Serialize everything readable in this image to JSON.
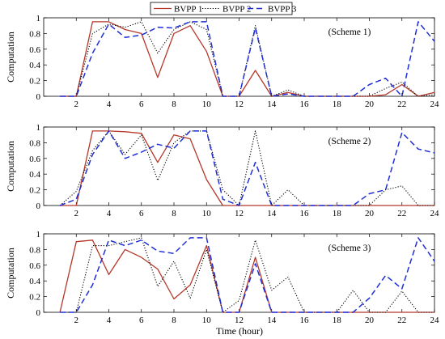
{
  "legend": [
    {
      "name": "BVPP 1",
      "color": "#b5372a",
      "dash": "solid"
    },
    {
      "name": "BVPP 2",
      "color": "#000000",
      "dash": "dotted"
    },
    {
      "name": "BVPP 3",
      "color": "#1f2fd6",
      "dash": "dashed"
    }
  ],
  "xlabel": "Time (hour)",
  "ylabel": "Computation",
  "chart_data": [
    {
      "type": "line",
      "annotation": "(Scheme 1)",
      "xlim": [
        0,
        24
      ],
      "ylim": [
        0,
        1
      ],
      "xticks": [
        2,
        4,
        6,
        8,
        10,
        12,
        14,
        16,
        18,
        20,
        22,
        24
      ],
      "yticks": [
        0,
        0.2,
        0.4,
        0.6,
        0.8,
        1
      ],
      "x": [
        1,
        2,
        3,
        4,
        5,
        6,
        7,
        8,
        9,
        10,
        11,
        12,
        13,
        14,
        15,
        16,
        17,
        18,
        19,
        20,
        21,
        22,
        23,
        24
      ],
      "series": [
        {
          "name": "BVPP 1",
          "values": [
            0,
            0,
            0.95,
            0.95,
            0.85,
            0.8,
            0.24,
            0.8,
            0.9,
            0.57,
            0,
            0,
            0.33,
            0,
            0.05,
            0,
            0,
            0,
            0,
            0,
            0.02,
            0.15,
            0,
            0.05
          ]
        },
        {
          "name": "BVPP 2",
          "values": [
            0,
            0,
            0.8,
            0.92,
            0.88,
            0.95,
            0.55,
            0.85,
            0.95,
            0.85,
            0,
            0,
            0.9,
            0,
            0.08,
            0,
            0,
            0,
            0,
            0,
            0.1,
            0.18,
            0,
            0.02
          ]
        },
        {
          "name": "BVPP 3",
          "values": [
            0,
            0,
            0.55,
            0.92,
            0.75,
            0.78,
            0.88,
            0.87,
            0.95,
            0.95,
            0,
            0,
            0.87,
            0,
            0.03,
            0,
            0,
            0,
            0,
            0.15,
            0.23,
            0,
            0.95,
            0.7
          ]
        }
      ]
    },
    {
      "type": "line",
      "annotation": "(Scheme 2)",
      "xlim": [
        0,
        24
      ],
      "ylim": [
        0,
        1
      ],
      "xticks": [
        2,
        4,
        6,
        8,
        10,
        12,
        14,
        16,
        18,
        20,
        22,
        24
      ],
      "yticks": [
        0,
        0.2,
        0.4,
        0.6,
        0.8,
        1
      ],
      "x": [
        1,
        2,
        3,
        4,
        5,
        6,
        7,
        8,
        9,
        10,
        11,
        12,
        13,
        14,
        15,
        16,
        17,
        18,
        19,
        20,
        21,
        22,
        23,
        24
      ],
      "series": [
        {
          "name": "BVPP 1",
          "values": [
            0,
            0,
            0.95,
            0.95,
            0.94,
            0.92,
            0.55,
            0.9,
            0.85,
            0.33,
            0,
            0,
            0,
            0,
            0,
            0,
            0,
            0,
            0,
            0,
            0,
            0,
            0,
            0
          ]
        },
        {
          "name": "BVPP 2",
          "values": [
            0,
            0.18,
            0.7,
            0.95,
            0.65,
            0.9,
            0.32,
            0.8,
            0.95,
            0.95,
            0.2,
            0,
            0.95,
            0,
            0.2,
            0,
            0,
            0,
            0,
            0,
            0.2,
            0.25,
            0,
            0
          ]
        },
        {
          "name": "BVPP 3",
          "values": [
            0,
            0.08,
            0.65,
            0.95,
            0.6,
            0.68,
            0.78,
            0.73,
            0.95,
            0.95,
            0.08,
            0,
            0.55,
            0,
            0,
            0,
            0,
            0,
            0,
            0.15,
            0.2,
            0.93,
            0.72,
            0.67
          ]
        }
      ]
    },
    {
      "type": "line",
      "annotation": "(Scheme 3)",
      "xlim": [
        0,
        24
      ],
      "ylim": [
        0,
        1
      ],
      "xticks": [
        2,
        4,
        6,
        8,
        10,
        12,
        14,
        16,
        18,
        20,
        22,
        24
      ],
      "yticks": [
        0,
        0.2,
        0.4,
        0.6,
        0.8,
        1
      ],
      "x": [
        1,
        2,
        3,
        4,
        5,
        6,
        7,
        8,
        9,
        10,
        11,
        12,
        13,
        14,
        15,
        16,
        17,
        18,
        19,
        20,
        21,
        22,
        23,
        24
      ],
      "series": [
        {
          "name": "BVPP 1",
          "values": [
            0,
            0.9,
            0.92,
            0.48,
            0.8,
            0.7,
            0.55,
            0.17,
            0.35,
            0.85,
            0,
            0,
            0.7,
            0,
            0,
            0,
            0,
            0,
            0,
            0,
            0,
            0,
            0,
            0
          ]
        },
        {
          "name": "BVPP 2",
          "values": [
            0,
            0,
            0.85,
            0.85,
            0.9,
            0.95,
            0.33,
            0.65,
            0.18,
            0.8,
            0,
            0.15,
            0.92,
            0.28,
            0.45,
            0,
            0,
            0,
            0.28,
            0,
            0,
            0.27,
            0,
            0
          ]
        },
        {
          "name": "BVPP 3",
          "values": [
            0,
            0,
            0.35,
            0.92,
            0.85,
            0.92,
            0.78,
            0.75,
            0.95,
            0.95,
            0,
            0,
            0.62,
            0,
            0,
            0,
            0,
            0,
            0,
            0.18,
            0.47,
            0.3,
            0.95,
            0.65
          ]
        }
      ]
    }
  ]
}
